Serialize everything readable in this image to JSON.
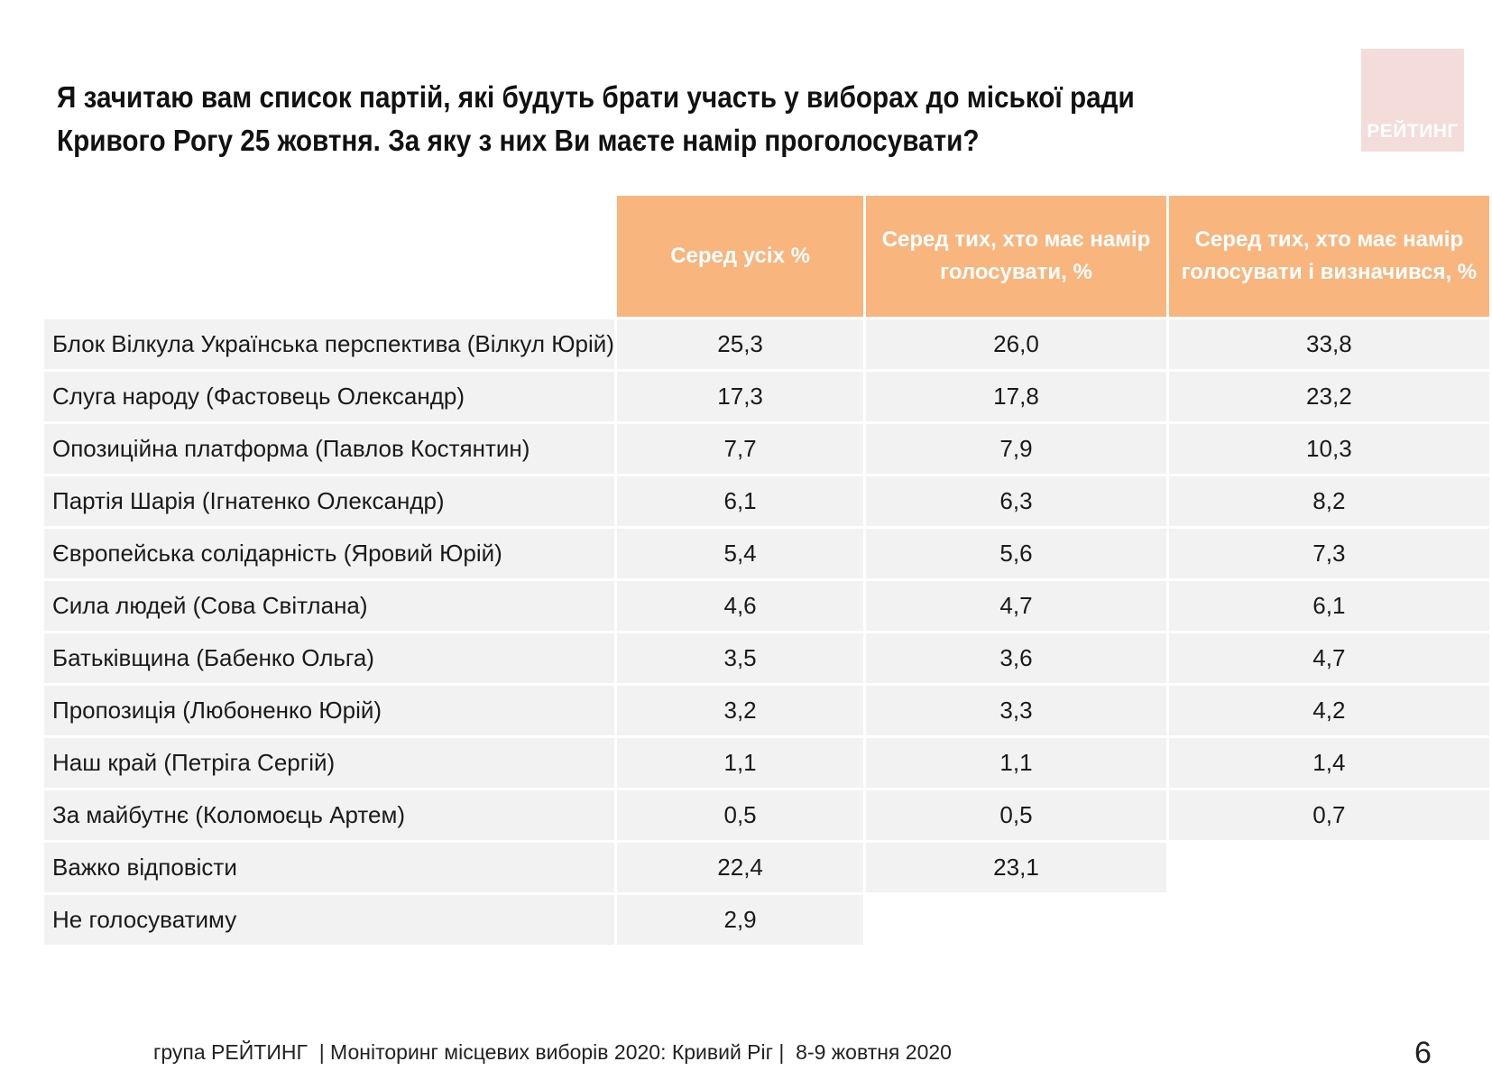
{
  "title": "Я зачитаю вам список партій, які будуть брати участь у виборах до міської ради Кривого Рогу 25 жовтня. За яку з них Ви маєте намір проголосувати?",
  "logo": {
    "text": "РЕЙТИНГ"
  },
  "footer": "група РЕЙТИНГ  | Моніторинг місцевих виборів 2020: Кривий Ріг |  8-9 жовтня 2020",
  "page_number": "6",
  "colors": {
    "header_bg": "#f8b57e",
    "row_bg": "#f2f2f2",
    "logo_bg": "#f3dcd9"
  },
  "chart_data": {
    "type": "table",
    "columns": [
      "Серед усіх %",
      "Серед тих, хто має намір голосувати, %",
      "Серед тих, хто має намір голосувати і визначився, %"
    ],
    "rows": [
      {
        "label": "Блок Вілкула Українська перспектива (Вілкул Юрій)",
        "values": [
          "25,3",
          "26,0",
          "33,8"
        ]
      },
      {
        "label": "Слуга народу (Фастовець Олександр)",
        "values": [
          "17,3",
          "17,8",
          "23,2"
        ]
      },
      {
        "label": "Опозиційна платформа (Павлов Костянтин)",
        "values": [
          "7,7",
          "7,9",
          "10,3"
        ]
      },
      {
        "label": "Партія Шарія (Ігнатенко Олександр)",
        "values": [
          "6,1",
          "6,3",
          "8,2"
        ]
      },
      {
        "label": "Європейська солідарність (Яровий Юрій)",
        "values": [
          "5,4",
          "5,6",
          "7,3"
        ]
      },
      {
        "label": "Сила людей (Сова Світлана)",
        "values": [
          "4,6",
          "4,7",
          "6,1"
        ]
      },
      {
        "label": "Батьківщина (Бабенко Ольга)",
        "values": [
          "3,5",
          "3,6",
          "4,7"
        ]
      },
      {
        "label": "Пропозиція (Любоненко Юрій)",
        "values": [
          "3,2",
          "3,3",
          "4,2"
        ]
      },
      {
        "label": "Наш край (Петріга Сергій)",
        "values": [
          "1,1",
          "1,1",
          "1,4"
        ]
      },
      {
        "label": "За майбутнє (Коломоєць Артем)",
        "values": [
          "0,5",
          "0,5",
          "0,7"
        ]
      },
      {
        "label": "Важко відповісти",
        "values": [
          "22,4",
          "23,1",
          null
        ]
      },
      {
        "label": "Не голосуватиму",
        "values": [
          "2,9",
          null,
          null
        ]
      }
    ]
  }
}
